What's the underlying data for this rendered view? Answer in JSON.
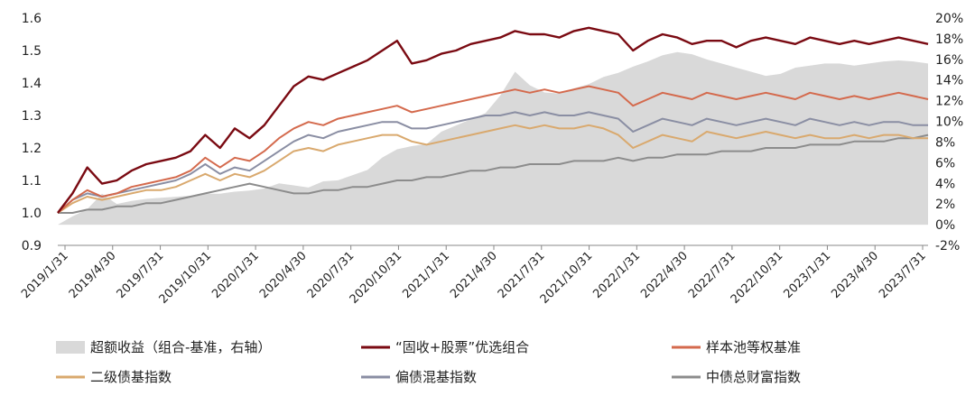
{
  "chart_data": {
    "type": "line",
    "x_tick_labels": [
      "2019/1/31",
      "2019/4/30",
      "2019/7/31",
      "2019/10/31",
      "2020/1/31",
      "2020/4/30",
      "2020/7/31",
      "2020/10/31",
      "2021/1/31",
      "2021/4/30",
      "2021/7/31",
      "2021/10/31",
      "2022/1/31",
      "2022/4/30",
      "2022/7/31",
      "2022/10/31",
      "2023/1/31",
      "2023/4/30",
      "2023/7/31"
    ],
    "y_left": {
      "ticks": [
        "0.9",
        "1.0",
        "1.1",
        "1.2",
        "1.3",
        "1.4",
        "1.5",
        "1.6"
      ],
      "min": 0.9,
      "max": 1.6
    },
    "y_right": {
      "ticks": [
        "-2%",
        "0%",
        "2%",
        "4%",
        "6%",
        "8%",
        "10%",
        "12%",
        "14%",
        "16%",
        "18%",
        "20%"
      ],
      "min": -2,
      "max": 20
    },
    "grid": false,
    "legend_position": "bottom",
    "excess_return": {
      "name": "超额收益（组合-基准，右轴）",
      "color": "#d9d9d9",
      "axis": "right",
      "values": [
        0.0,
        0.8,
        1.5,
        3.0,
        2.0,
        2.3,
        2.5,
        2.6,
        2.7,
        2.8,
        3.0,
        3.0,
        3.2,
        3.3,
        3.5,
        4.0,
        3.8,
        3.6,
        4.2,
        4.3,
        4.8,
        5.3,
        6.5,
        7.3,
        7.6,
        7.8,
        9.0,
        9.6,
        10.2,
        10.8,
        12.5,
        14.8,
        13.5,
        12.8,
        12.7,
        13.2,
        13.6,
        14.3,
        14.7,
        15.3,
        15.8,
        16.4,
        16.7,
        16.5,
        16.0,
        15.6,
        15.2,
        14.8,
        14.4,
        14.6,
        15.2,
        15.4,
        15.6,
        15.6,
        15.4,
        15.6,
        15.8,
        15.9,
        15.8,
        15.6
      ]
    },
    "series": [
      {
        "name": "“固收+股票”优选组合",
        "color": "#7a0a12",
        "axis": "left",
        "values": [
          1.0,
          1.06,
          1.14,
          1.09,
          1.1,
          1.13,
          1.15,
          1.16,
          1.17,
          1.19,
          1.24,
          1.2,
          1.26,
          1.23,
          1.27,
          1.33,
          1.39,
          1.42,
          1.41,
          1.43,
          1.45,
          1.47,
          1.5,
          1.53,
          1.46,
          1.47,
          1.49,
          1.5,
          1.52,
          1.53,
          1.54,
          1.56,
          1.55,
          1.55,
          1.54,
          1.56,
          1.57,
          1.56,
          1.55,
          1.5,
          1.53,
          1.55,
          1.54,
          1.52,
          1.53,
          1.53,
          1.51,
          1.53,
          1.54,
          1.53,
          1.52,
          1.54,
          1.53,
          1.52,
          1.53,
          1.52,
          1.53,
          1.54,
          1.53,
          1.52
        ]
      },
      {
        "name": "样本池等权基准",
        "color": "#d46a4d",
        "axis": "left",
        "values": [
          1.0,
          1.04,
          1.07,
          1.05,
          1.06,
          1.08,
          1.09,
          1.1,
          1.11,
          1.13,
          1.17,
          1.14,
          1.17,
          1.16,
          1.19,
          1.23,
          1.26,
          1.28,
          1.27,
          1.29,
          1.3,
          1.31,
          1.32,
          1.33,
          1.31,
          1.32,
          1.33,
          1.34,
          1.35,
          1.36,
          1.37,
          1.38,
          1.37,
          1.38,
          1.37,
          1.38,
          1.39,
          1.38,
          1.37,
          1.33,
          1.35,
          1.37,
          1.36,
          1.35,
          1.37,
          1.36,
          1.35,
          1.36,
          1.37,
          1.36,
          1.35,
          1.37,
          1.36,
          1.35,
          1.36,
          1.35,
          1.36,
          1.37,
          1.36,
          1.35
        ]
      },
      {
        "name": "二级债基指数",
        "color": "#d9a96e",
        "axis": "left",
        "values": [
          1.0,
          1.03,
          1.05,
          1.04,
          1.05,
          1.06,
          1.07,
          1.07,
          1.08,
          1.1,
          1.12,
          1.1,
          1.12,
          1.11,
          1.13,
          1.16,
          1.19,
          1.2,
          1.19,
          1.21,
          1.22,
          1.23,
          1.24,
          1.24,
          1.22,
          1.21,
          1.22,
          1.23,
          1.24,
          1.25,
          1.26,
          1.27,
          1.26,
          1.27,
          1.26,
          1.26,
          1.27,
          1.26,
          1.24,
          1.2,
          1.22,
          1.24,
          1.23,
          1.22,
          1.25,
          1.24,
          1.23,
          1.24,
          1.25,
          1.24,
          1.23,
          1.24,
          1.23,
          1.23,
          1.24,
          1.23,
          1.24,
          1.24,
          1.23,
          1.23
        ]
      },
      {
        "name": "偏债混基指数",
        "color": "#8a8ea3",
        "axis": "left",
        "values": [
          1.0,
          1.04,
          1.06,
          1.05,
          1.06,
          1.07,
          1.08,
          1.09,
          1.1,
          1.12,
          1.15,
          1.12,
          1.14,
          1.13,
          1.16,
          1.19,
          1.22,
          1.24,
          1.23,
          1.25,
          1.26,
          1.27,
          1.28,
          1.28,
          1.26,
          1.26,
          1.27,
          1.28,
          1.29,
          1.3,
          1.3,
          1.31,
          1.3,
          1.31,
          1.3,
          1.3,
          1.31,
          1.3,
          1.29,
          1.25,
          1.27,
          1.29,
          1.28,
          1.27,
          1.29,
          1.28,
          1.27,
          1.28,
          1.29,
          1.28,
          1.27,
          1.29,
          1.28,
          1.27,
          1.28,
          1.27,
          1.28,
          1.28,
          1.27,
          1.27
        ]
      },
      {
        "name": "中债总财富指数",
        "color": "#8c8c8c",
        "axis": "left",
        "values": [
          1.0,
          1.0,
          1.01,
          1.01,
          1.02,
          1.02,
          1.03,
          1.03,
          1.04,
          1.05,
          1.06,
          1.07,
          1.08,
          1.09,
          1.08,
          1.07,
          1.06,
          1.06,
          1.07,
          1.07,
          1.08,
          1.08,
          1.09,
          1.1,
          1.1,
          1.11,
          1.11,
          1.12,
          1.13,
          1.13,
          1.14,
          1.14,
          1.15,
          1.15,
          1.15,
          1.16,
          1.16,
          1.16,
          1.17,
          1.16,
          1.17,
          1.17,
          1.18,
          1.18,
          1.18,
          1.19,
          1.19,
          1.19,
          1.2,
          1.2,
          1.2,
          1.21,
          1.21,
          1.21,
          1.22,
          1.22,
          1.22,
          1.23,
          1.23,
          1.24
        ]
      }
    ]
  }
}
